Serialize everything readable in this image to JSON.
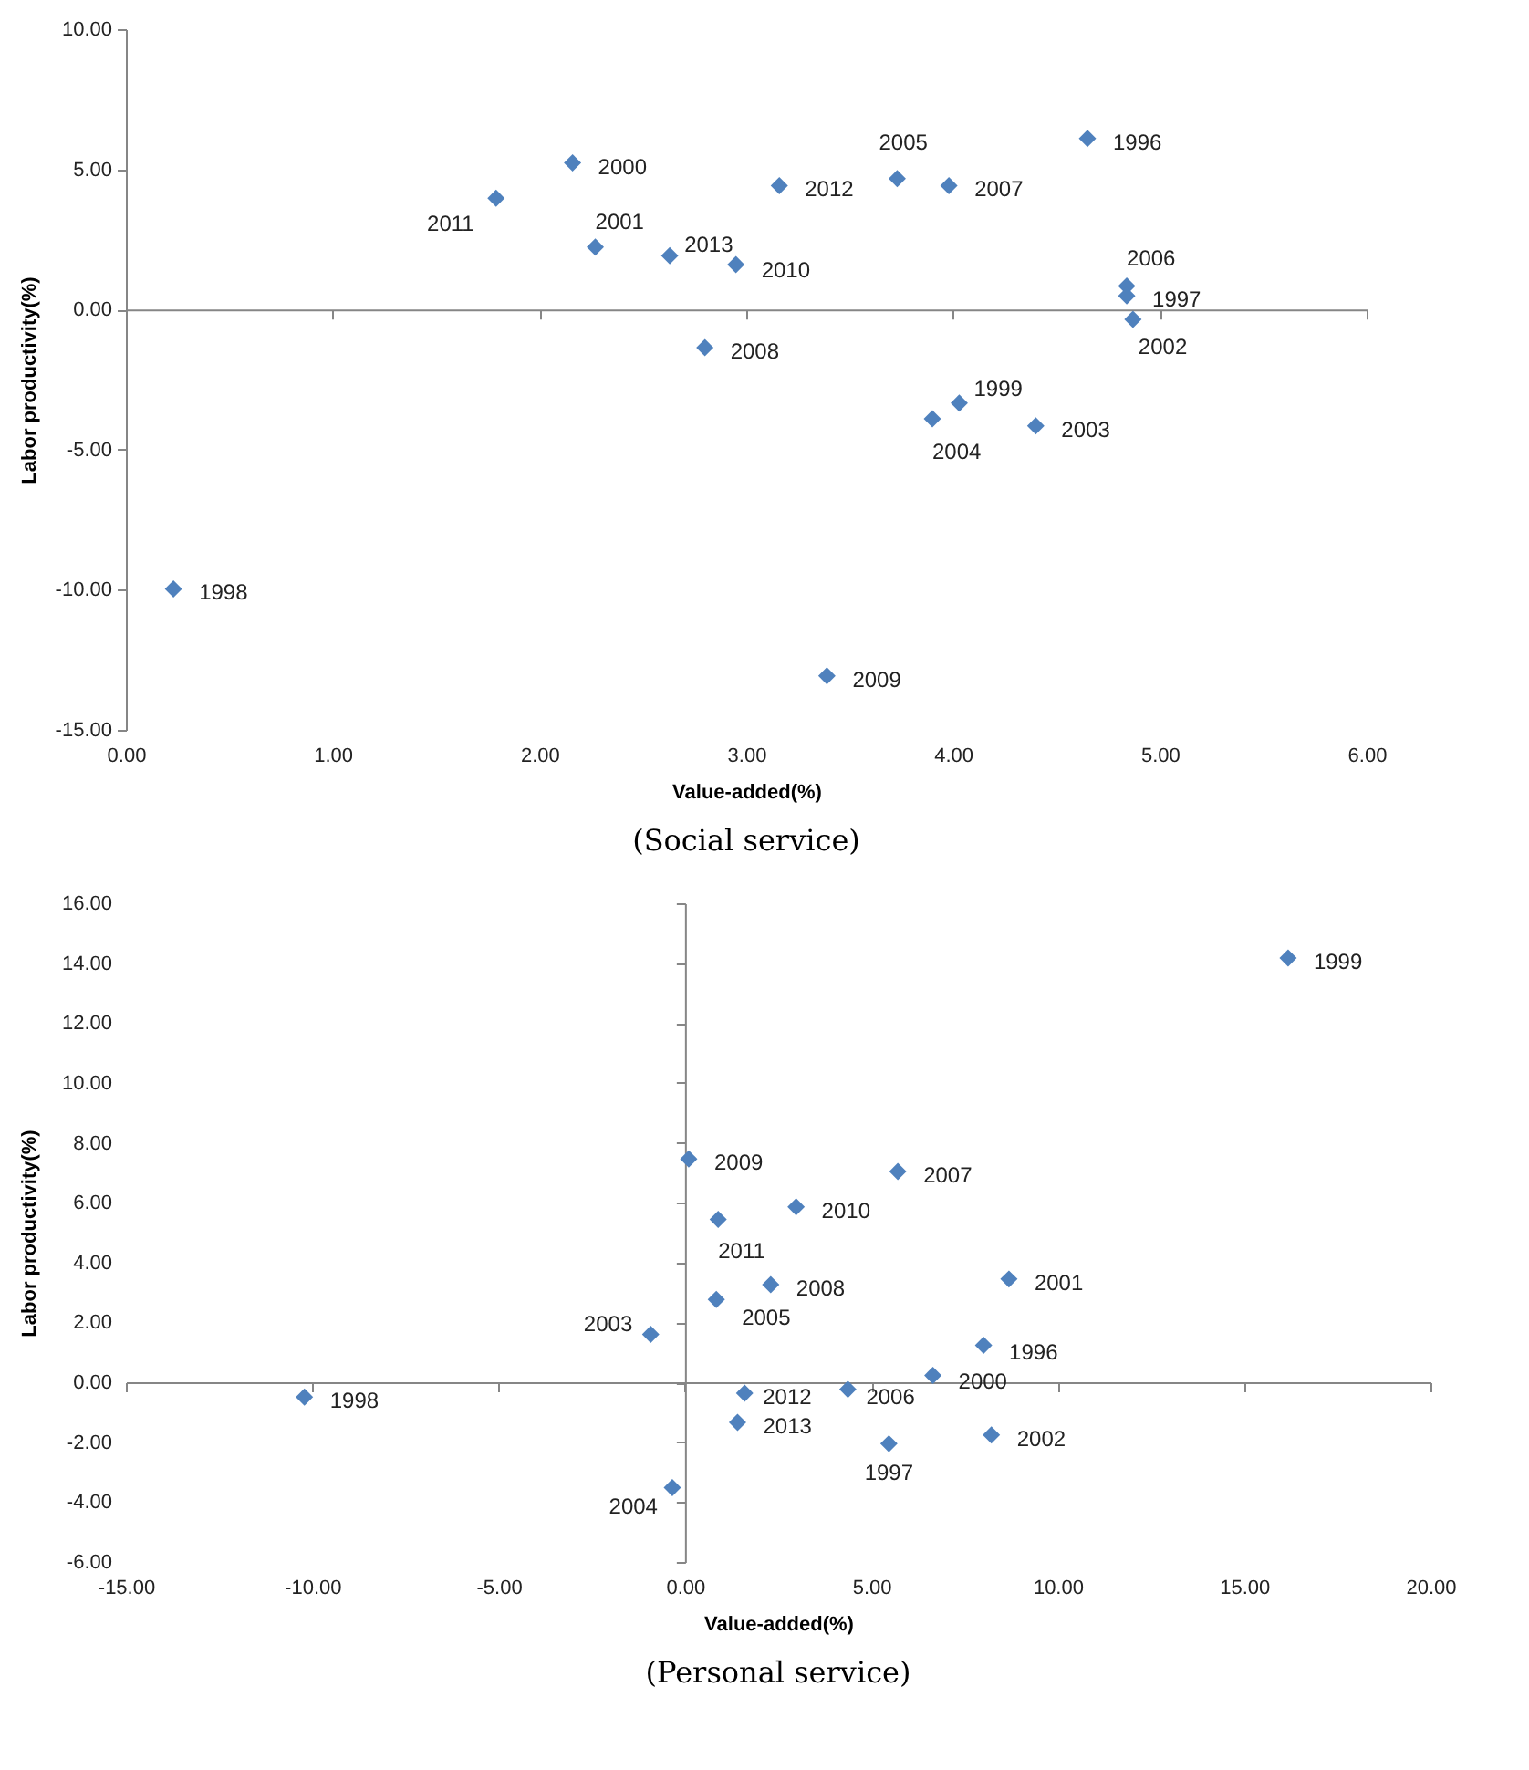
{
  "chart_data": [
    {
      "type": "scatter",
      "title": "(Social service)",
      "xlabel": "Value-added(%)",
      "ylabel": "Labor productivity(%)",
      "color": "#4f81bd",
      "marker": "diamond",
      "x": [
        4.65,
        4.84,
        4.84,
        4.87,
        2.16,
        1.79,
        2.27,
        2.63,
        2.95,
        3.16,
        3.73,
        3.98,
        2.8,
        4.03,
        3.9,
        4.4,
        0.23,
        3.39
      ],
      "values": [
        6.1,
        0.84,
        0.49,
        -0.35,
        5.23,
        3.97,
        2.23,
        1.92,
        1.6,
        4.42,
        4.67,
        4.42,
        -1.36,
        -3.34,
        -3.9,
        -4.15,
        -9.97,
        -13.07
      ],
      "xlim": [
        0,
        6
      ],
      "ylim": [
        -15,
        10
      ],
      "xticks": [
        {
          "value": 0,
          "label": "0.00"
        },
        {
          "value": 1,
          "label": "1.00"
        },
        {
          "value": 2,
          "label": "2.00"
        },
        {
          "value": 3,
          "label": "3.00"
        },
        {
          "value": 4,
          "label": "4.00"
        },
        {
          "value": 5,
          "label": "5.00"
        },
        {
          "value": 6,
          "label": "6.00"
        }
      ],
      "yticks": [
        {
          "value": -15,
          "label": "-15.00"
        },
        {
          "value": -10,
          "label": "-10.00"
        },
        {
          "value": -5,
          "label": "-5.00"
        },
        {
          "value": 0,
          "label": "0.00"
        },
        {
          "value": 5,
          "label": "5.00"
        },
        {
          "value": 10,
          "label": "10.00"
        }
      ],
      "annotations": [
        {
          "text": "1996",
          "x": 4.65,
          "y": 6.1
        },
        {
          "text": "2006",
          "x": 4.84,
          "y": 0.84
        },
        {
          "text": "1997",
          "x": 4.84,
          "y": 0.49
        },
        {
          "text": "2002",
          "x": 4.87,
          "y": -0.35
        },
        {
          "text": "2000",
          "x": 2.16,
          "y": 5.23
        },
        {
          "text": "2011",
          "x": 1.79,
          "y": 3.97
        },
        {
          "text": "2001",
          "x": 2.27,
          "y": 2.23
        },
        {
          "text": "2013",
          "x": 2.63,
          "y": 1.92
        },
        {
          "text": "2010",
          "x": 2.95,
          "y": 1.6
        },
        {
          "text": "2012",
          "x": 3.16,
          "y": 4.42
        },
        {
          "text": "2005",
          "x": 3.73,
          "y": 4.67
        },
        {
          "text": "2007",
          "x": 3.98,
          "y": 4.42
        },
        {
          "text": "2008",
          "x": 2.8,
          "y": -1.36
        },
        {
          "text": "1999",
          "x": 4.03,
          "y": -3.34
        },
        {
          "text": "2004",
          "x": 3.9,
          "y": -3.9
        },
        {
          "text": "2003",
          "x": 4.4,
          "y": -4.15
        },
        {
          "text": "1998",
          "x": 0.23,
          "y": -9.97
        },
        {
          "text": "2009",
          "x": 3.39,
          "y": -13.07
        }
      ]
    },
    {
      "type": "scatter",
      "title": "(Personal service)",
      "xlabel": "Value-added(%)",
      "ylabel": "Labor productivity(%)",
      "color": "#4f81bd",
      "marker": "diamond",
      "x": [
        16.18,
        0.1,
        5.71,
        2.98,
        0.89,
        8.69,
        2.3,
        0.84,
        -0.92,
        8.01,
        6.65,
        4.37,
        1.6,
        -10.21,
        1.41,
        8.22,
        5.47,
        -0.34
      ],
      "values": [
        14.17,
        7.46,
        7.04,
        5.86,
        5.44,
        3.45,
        3.26,
        2.77,
        1.6,
        1.24,
        0.23,
        -0.23,
        -0.36,
        -0.49,
        -1.34,
        -1.76,
        -2.05,
        -3.52
      ],
      "xlim": [
        -15,
        20
      ],
      "ylim": [
        -6,
        16
      ],
      "xticks": [
        {
          "value": -15,
          "label": "-15.00"
        },
        {
          "value": -10,
          "label": "-10.00"
        },
        {
          "value": -5,
          "label": "-5.00"
        },
        {
          "value": 0,
          "label": "0.00"
        },
        {
          "value": 5,
          "label": "5.00"
        },
        {
          "value": 10,
          "label": "10.00"
        },
        {
          "value": 15,
          "label": "15.00"
        },
        {
          "value": 20,
          "label": "20.00"
        }
      ],
      "yticks": [
        {
          "value": -6,
          "label": "-6.00"
        },
        {
          "value": -4,
          "label": "-4.00"
        },
        {
          "value": -2,
          "label": "-2.00"
        },
        {
          "value": 0,
          "label": "0.00"
        },
        {
          "value": 2,
          "label": "2.00"
        },
        {
          "value": 4,
          "label": "4.00"
        },
        {
          "value": 6,
          "label": "6.00"
        },
        {
          "value": 8,
          "label": "8.00"
        },
        {
          "value": 10,
          "label": "10.00"
        },
        {
          "value": 12,
          "label": "12.00"
        },
        {
          "value": 14,
          "label": "14.00"
        },
        {
          "value": 16,
          "label": "16.00"
        }
      ],
      "annotations": [
        {
          "text": "1999",
          "x": 16.18,
          "y": 14.17
        },
        {
          "text": "2009",
          "x": 0.1,
          "y": 7.46
        },
        {
          "text": "2007",
          "x": 5.71,
          "y": 7.04
        },
        {
          "text": "2010",
          "x": 2.98,
          "y": 5.86
        },
        {
          "text": "2011",
          "x": 0.89,
          "y": 5.44
        },
        {
          "text": "2001",
          "x": 8.69,
          "y": 3.45
        },
        {
          "text": "2008",
          "x": 2.3,
          "y": 3.26
        },
        {
          "text": "2005",
          "x": 0.84,
          "y": 2.77
        },
        {
          "text": "2003",
          "x": -0.92,
          "y": 1.6
        },
        {
          "text": "1996",
          "x": 8.01,
          "y": 1.24
        },
        {
          "text": "2000",
          "x": 6.65,
          "y": 0.23
        },
        {
          "text": "2006",
          "x": 4.37,
          "y": -0.23
        },
        {
          "text": "2012",
          "x": 1.6,
          "y": -0.36
        },
        {
          "text": "1998",
          "x": -10.21,
          "y": -0.49
        },
        {
          "text": "2013",
          "x": 1.41,
          "y": -1.34
        },
        {
          "text": "2002",
          "x": 8.22,
          "y": -1.76
        },
        {
          "text": "1997",
          "x": 5.47,
          "y": -2.05
        },
        {
          "text": "2004",
          "x": -0.34,
          "y": -3.52
        }
      ]
    }
  ]
}
